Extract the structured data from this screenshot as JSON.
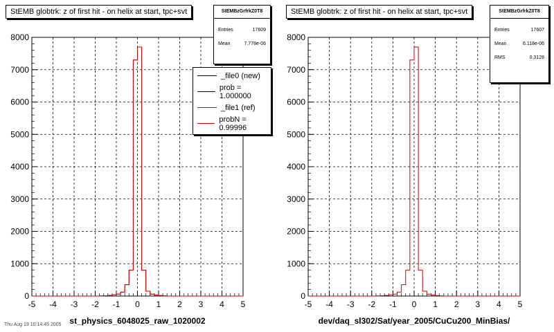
{
  "colors": {
    "new": "#000000",
    "ref": "#cc0000",
    "grid": "#000000"
  },
  "panels": [
    {
      "title": "StEMB globtrk: z of first hit - on helix at start, tpc+svt",
      "xlabel": "st_physics_6048025_raw_1020002",
      "stats": {
        "name": "StEMBzGrfrkZ0T8",
        "rows": [
          {
            "label": "Entries",
            "value": "17609"
          },
          {
            "label": "Mean",
            "value": "7.778e-06"
          }
        ]
      },
      "legend": [
        {
          "label": "_file0 (new)",
          "color_key": "new"
        },
        {
          "label": "prob = 1.000000",
          "color_key": "new"
        },
        {
          "label": "_file1 (ref)",
          "color_key": "ref"
        },
        {
          "label": "probN = 0.99996",
          "color_key": "ref"
        }
      ]
    },
    {
      "title": "StEMB globtrk: z of first hit - on helix at start, tpc+svt",
      "xlabel": "dev/daq_sl302/Sat/year_2005/CuCu200_MinBias/",
      "stats": {
        "name": "StEMBzGrfrkZ0T8",
        "rows": [
          {
            "label": "Entries",
            "value": "17607"
          },
          {
            "label": "Mean",
            "value": "6.118e-06"
          },
          {
            "label": "RMS",
            "value": "0.3128"
          }
        ]
      }
    }
  ],
  "footer_note": "Thu Aug 19 10:14:45 2005",
  "chart_data": [
    {
      "type": "histogram",
      "title": "StEMB globtrk: z of first hit - on helix at start, tpc+svt",
      "xlabel": "st_physics_6048025_raw_1020002",
      "ylabel": "",
      "xlim": [
        -5,
        5
      ],
      "ylim": [
        0,
        8000
      ],
      "xticks": [
        -5,
        -4,
        -3,
        -2,
        -1,
        0,
        1,
        2,
        3,
        4,
        5
      ],
      "yticks": [
        0,
        1000,
        2000,
        3000,
        4000,
        5000,
        6000,
        7000,
        8000
      ],
      "grid": true,
      "bin_width": 0.2,
      "bin_start": -5,
      "series": [
        {
          "name": "_file0 (new)",
          "values": [
            0,
            0,
            0,
            0,
            0,
            0,
            0,
            0,
            0,
            0,
            0,
            0,
            0,
            0,
            0,
            0,
            5,
            10,
            20,
            40,
            60,
            120,
            350,
            800,
            7300,
            7700,
            800,
            150,
            60,
            30,
            15,
            5,
            0,
            0,
            0,
            0,
            0,
            0,
            0,
            0,
            0,
            0,
            0,
            0,
            0,
            0,
            0,
            0,
            0,
            0
          ]
        },
        {
          "name": "_file1 (ref)",
          "values": [
            0,
            0,
            0,
            0,
            0,
            0,
            0,
            0,
            0,
            0,
            0,
            0,
            0,
            0,
            0,
            0,
            5,
            10,
            20,
            40,
            60,
            120,
            350,
            800,
            7300,
            7700,
            800,
            150,
            60,
            30,
            15,
            5,
            0,
            0,
            0,
            0,
            0,
            0,
            0,
            0,
            0,
            0,
            0,
            0,
            0,
            0,
            0,
            0,
            0,
            0
          ]
        }
      ]
    },
    {
      "type": "histogram",
      "title": "StEMB globtrk: z of first hit - on helix at start, tpc+svt",
      "xlabel": "dev/daq_sl302/Sat/year_2005/CuCu200_MinBias/",
      "ylabel": "",
      "xlim": [
        -5,
        5
      ],
      "ylim": [
        0,
        8000
      ],
      "xticks": [
        -5,
        -4,
        -3,
        -2,
        -1,
        0,
        1,
        2,
        3,
        4,
        5
      ],
      "yticks": [
        0,
        1000,
        2000,
        3000,
        4000,
        5000,
        6000,
        7000,
        8000
      ],
      "grid": true,
      "bin_width": 0.2,
      "bin_start": -5,
      "series": [
        {
          "name": "",
          "values": [
            0,
            0,
            0,
            0,
            0,
            0,
            0,
            0,
            0,
            0,
            0,
            0,
            0,
            0,
            0,
            0,
            5,
            10,
            20,
            40,
            60,
            120,
            350,
            800,
            7300,
            7700,
            800,
            150,
            60,
            30,
            15,
            5,
            0,
            0,
            0,
            0,
            0,
            0,
            0,
            0,
            0,
            0,
            0,
            0,
            0,
            0,
            0,
            0,
            0,
            0
          ]
        }
      ]
    }
  ]
}
